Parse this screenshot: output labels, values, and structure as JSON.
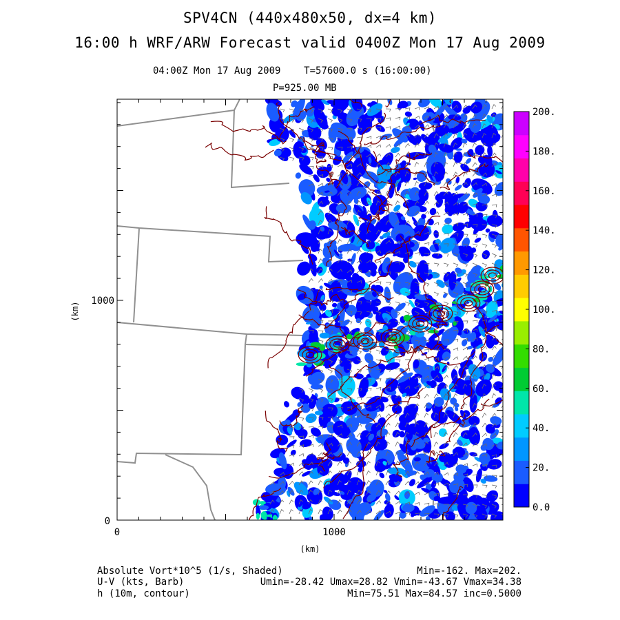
{
  "header": {
    "title_line1": "SPV4CN (440x480x50, dx=4 km)",
    "title_line2": "16:00 h WRF/ARW Forecast valid 0400Z Mon 17 Aug 2009",
    "valid_time": "04:00Z Mon 17 Aug 2009",
    "model_time": "T=57600.0 s (16:00:00)",
    "level": "P=925.00 MB"
  },
  "axes": {
    "x_unit": "(km)",
    "y_unit": "(km)",
    "x_ticks": [
      "0",
      "1000"
    ],
    "y_ticks": [
      "0",
      "1000"
    ]
  },
  "colorbar": {
    "labels": [
      "0.0",
      "20.",
      "40.",
      "60.",
      "80.",
      "100.",
      "120.",
      "140.",
      "160.",
      "180.",
      "200."
    ],
    "colors": [
      "#0000ff",
      "#1a5cff",
      "#0096ff",
      "#00ccff",
      "#00e6aa",
      "#00cc33",
      "#33dd00",
      "#99ee00",
      "#ffff00",
      "#ffcc00",
      "#ff9900",
      "#ff5500",
      "#ff0000",
      "#ff0055",
      "#ff00aa",
      "#ff00ff",
      "#cc00ff"
    ]
  },
  "footer": {
    "field1_name": "Absolute Vort*10^5 (1/s, Shaded)",
    "field1_stats": "Min=-162. Max=202.",
    "field2_name": "U-V (kts, Barb)",
    "field2_stats": "Umin=-28.42 Umax=28.82 Vmin=-43.67 Vmax=34.38",
    "field3_name": "h (10m, contour)",
    "field3_stats": "Min=75.51 Max=84.57 inc=0.5000"
  }
}
